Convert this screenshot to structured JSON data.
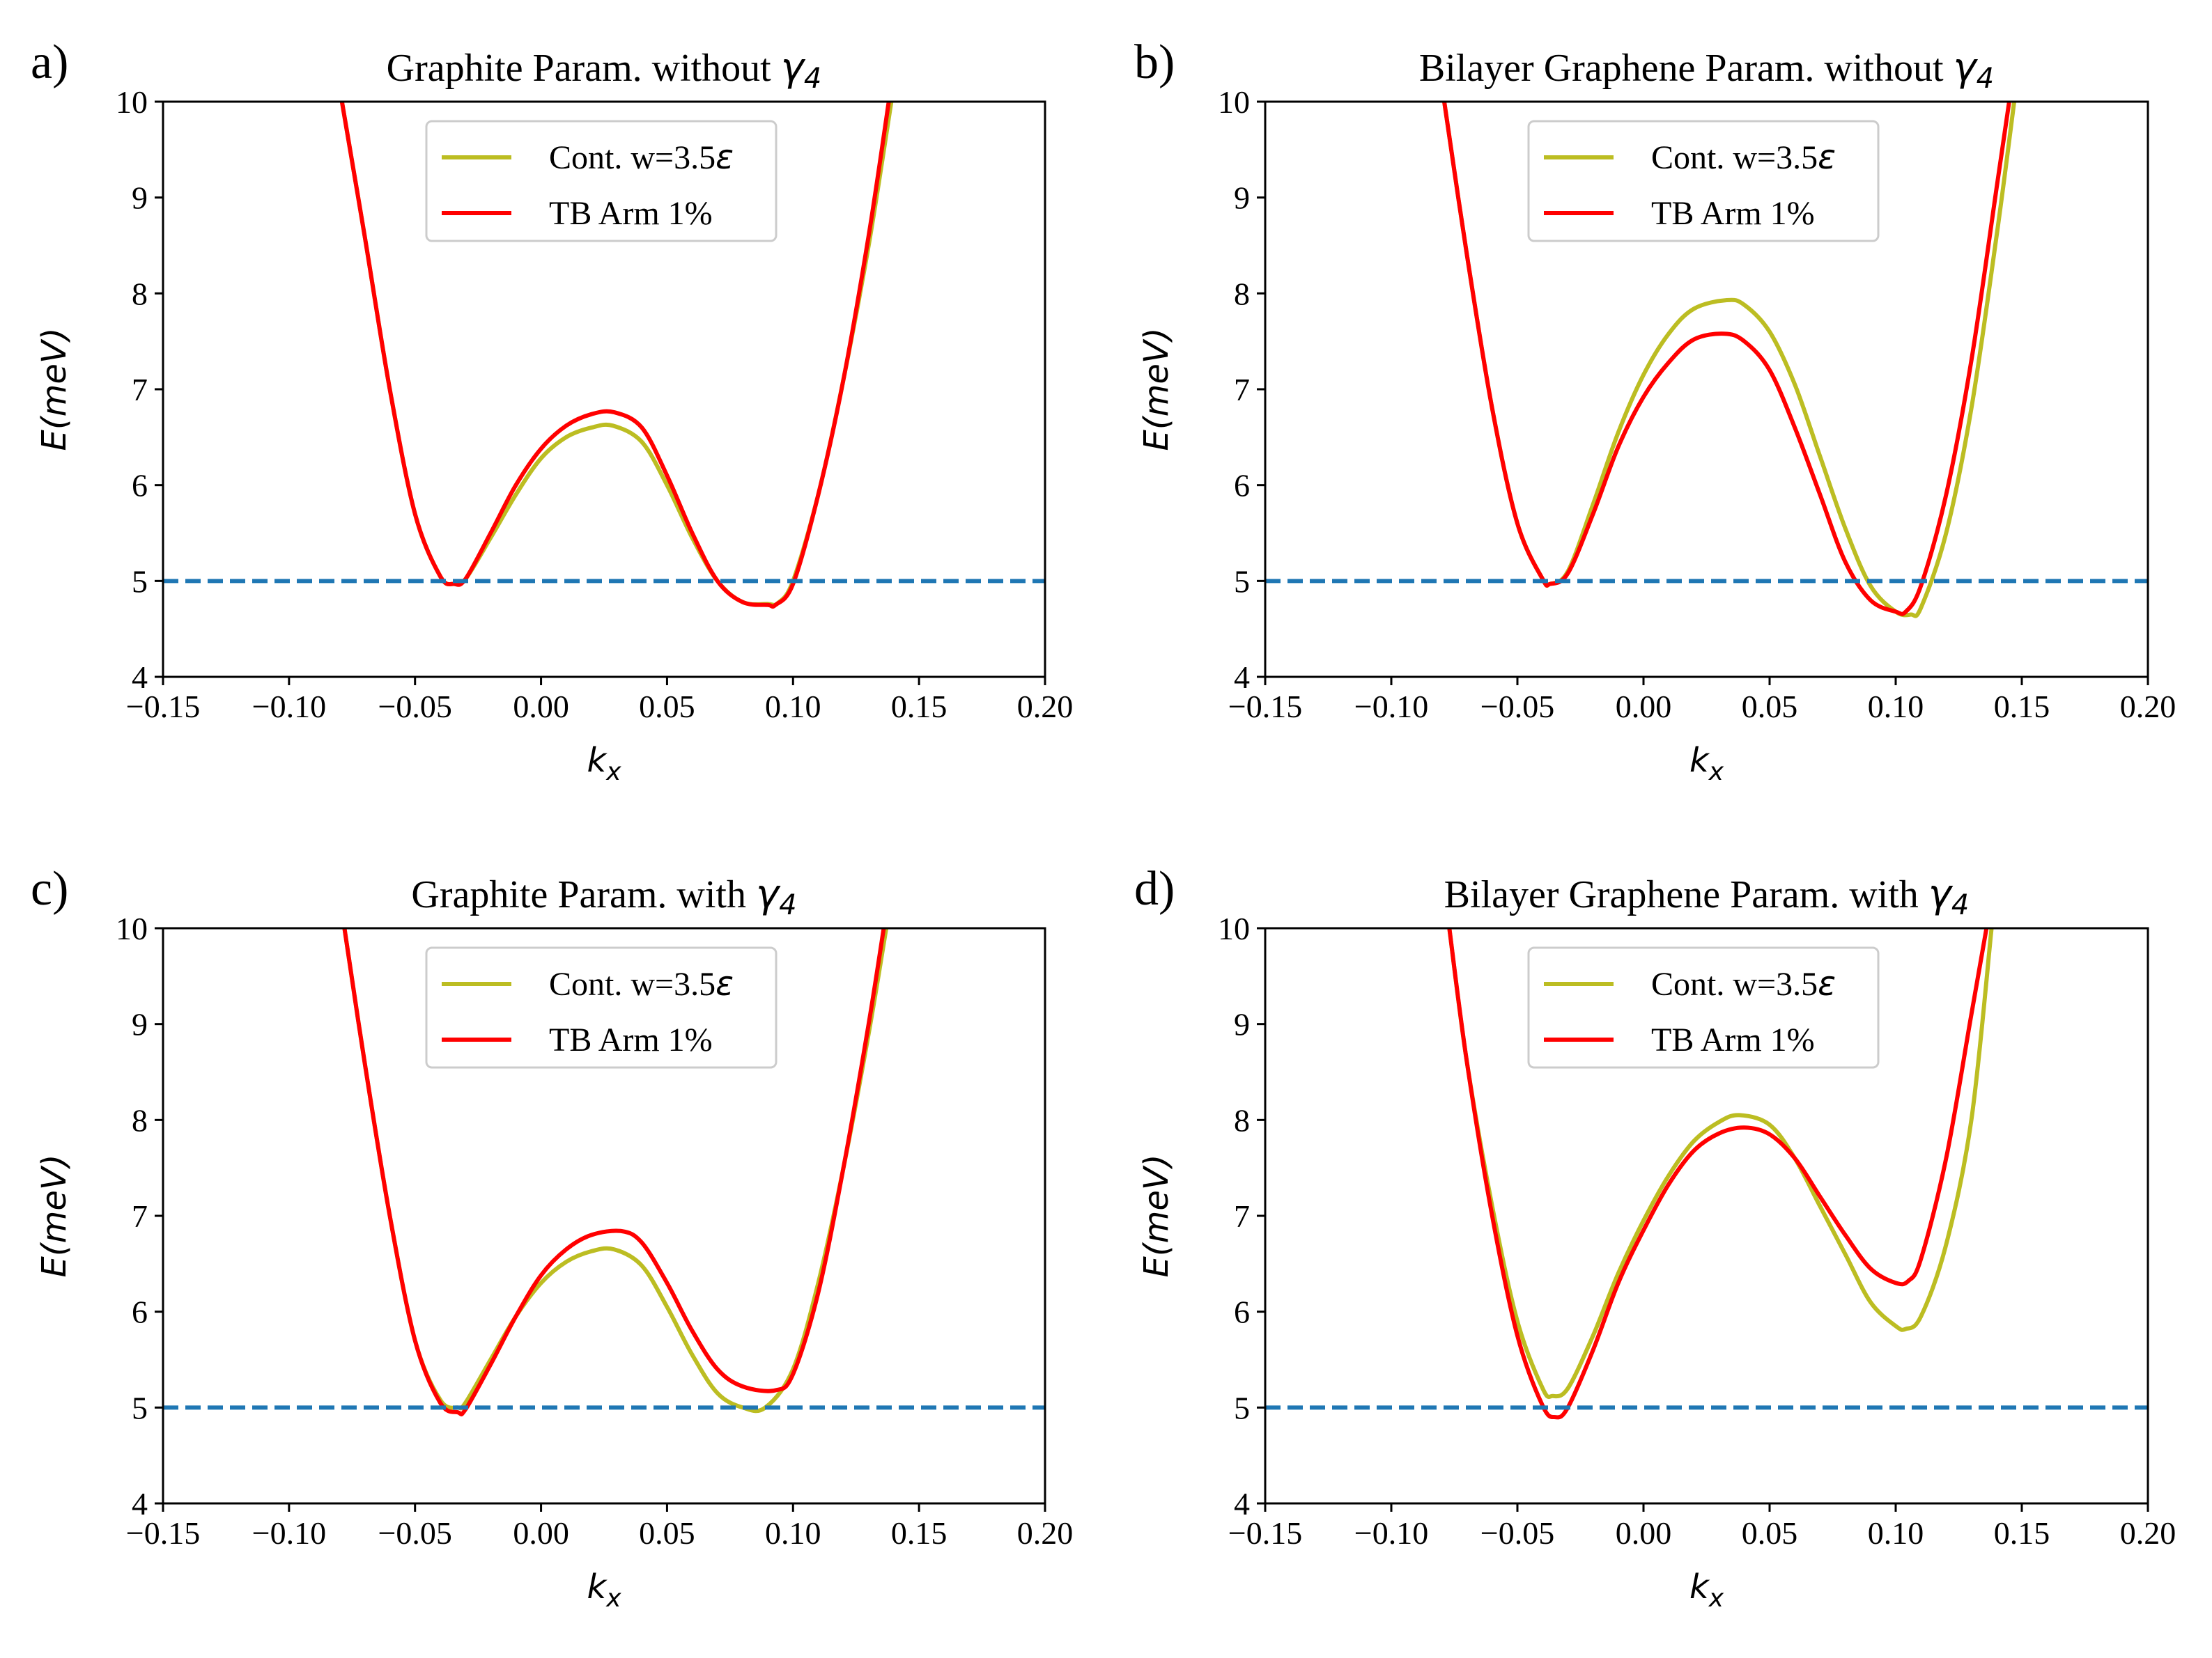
{
  "chart_data": [
    {
      "type": "line",
      "panel_label": "a)",
      "title": "Graphite Param. without ",
      "title_math": "γ4",
      "xlabel": "kx",
      "ylabel": "E(meV)",
      "xlim": [
        -0.15,
        0.2
      ],
      "ylim": [
        4,
        10
      ],
      "xticks": [
        -0.15,
        -0.1,
        -0.05,
        0.0,
        0.05,
        0.1,
        0.15,
        0.2
      ],
      "xtick_labels": [
        "−0.15",
        "−0.10",
        "−0.05",
        "0.00",
        "0.05",
        "0.10",
        "0.15",
        "0.20"
      ],
      "yticks": [
        4,
        5,
        6,
        7,
        8,
        9,
        10
      ],
      "ytick_labels": [
        "4",
        "5",
        "6",
        "7",
        "8",
        "9",
        "10"
      ],
      "legend_position": "top-center",
      "reference_line": {
        "y": 5.0,
        "color": "#1f77b4",
        "style": "dashed"
      },
      "series": [
        {
          "name": "Cont. w=3.5ε",
          "color": "#bcbd22",
          "x": [
            -0.079,
            -0.07,
            -0.06,
            -0.05,
            -0.04,
            -0.0345,
            -0.03,
            -0.02,
            -0.01,
            0.0,
            0.01,
            0.02,
            0.0285,
            0.04,
            0.05,
            0.06,
            0.07,
            0.08,
            0.09,
            0.094,
            0.1,
            0.11,
            0.12,
            0.13,
            0.139
          ],
          "y": [
            10.0,
            8.6,
            7.0,
            5.7,
            5.05,
            4.97,
            5.02,
            5.45,
            5.9,
            6.28,
            6.5,
            6.6,
            6.62,
            6.45,
            6.0,
            5.45,
            5.0,
            4.78,
            4.76,
            4.77,
            5.0,
            5.9,
            7.1,
            8.5,
            10.0
          ]
        },
        {
          "name": "TB Arm 1%",
          "color": "#ff0000",
          "x": [
            -0.079,
            -0.07,
            -0.06,
            -0.05,
            -0.04,
            -0.0345,
            -0.03,
            -0.02,
            -0.01,
            0.0,
            0.01,
            0.02,
            0.029,
            0.04,
            0.05,
            0.06,
            0.07,
            0.08,
            0.09,
            0.093,
            0.1,
            0.11,
            0.12,
            0.13,
            0.138
          ],
          "y": [
            10.0,
            8.6,
            7.0,
            5.7,
            5.05,
            4.97,
            5.02,
            5.5,
            6.0,
            6.38,
            6.62,
            6.74,
            6.76,
            6.6,
            6.1,
            5.5,
            5.0,
            4.78,
            4.75,
            4.75,
            4.97,
            5.9,
            7.1,
            8.6,
            10.0
          ]
        }
      ]
    },
    {
      "type": "line",
      "panel_label": "b)",
      "title": "Bilayer Graphene Param. without ",
      "title_math": "γ4",
      "xlabel": "kx",
      "ylabel": "E(meV)",
      "xlim": [
        -0.15,
        0.2
      ],
      "ylim": [
        4,
        10
      ],
      "xticks": [
        -0.15,
        -0.1,
        -0.05,
        0.0,
        0.05,
        0.1,
        0.15,
        0.2
      ],
      "xtick_labels": [
        "−0.15",
        "−0.10",
        "−0.05",
        "0.00",
        "0.05",
        "0.10",
        "0.15",
        "0.20"
      ],
      "yticks": [
        4,
        5,
        6,
        7,
        8,
        9,
        10
      ],
      "ytick_labels": [
        "4",
        "5",
        "6",
        "7",
        "8",
        "9",
        "10"
      ],
      "legend_position": "top-center",
      "reference_line": {
        "y": 5.0,
        "color": "#1f77b4",
        "style": "dashed"
      },
      "series": [
        {
          "name": "Cont. w=3.5ε",
          "color": "#bcbd22",
          "x": [
            -0.079,
            -0.07,
            -0.06,
            -0.05,
            -0.04,
            -0.037,
            -0.03,
            -0.02,
            -0.01,
            0.0,
            0.01,
            0.02,
            0.033,
            0.04,
            0.05,
            0.06,
            0.07,
            0.08,
            0.09,
            0.1,
            0.106,
            0.11,
            0.12,
            0.13,
            0.14,
            0.147
          ],
          "y": [
            10.0,
            8.4,
            6.8,
            5.6,
            5.02,
            4.97,
            5.1,
            5.8,
            6.55,
            7.15,
            7.58,
            7.84,
            7.93,
            7.88,
            7.6,
            7.05,
            6.3,
            5.55,
            4.95,
            4.68,
            4.65,
            4.72,
            5.5,
            6.8,
            8.6,
            10.0
          ]
        },
        {
          "name": "TB Arm 1%",
          "color": "#ff0000",
          "x": [
            -0.079,
            -0.07,
            -0.06,
            -0.05,
            -0.04,
            -0.037,
            -0.03,
            -0.02,
            -0.01,
            0.0,
            0.01,
            0.02,
            0.032,
            0.04,
            0.05,
            0.06,
            0.07,
            0.08,
            0.09,
            0.1,
            0.104,
            0.11,
            0.12,
            0.13,
            0.14,
            0.145
          ],
          "y": [
            10.0,
            8.4,
            6.8,
            5.6,
            5.02,
            4.97,
            5.08,
            5.7,
            6.4,
            6.92,
            7.28,
            7.52,
            7.58,
            7.5,
            7.2,
            6.6,
            5.9,
            5.2,
            4.8,
            4.68,
            4.68,
            4.95,
            5.9,
            7.3,
            9.1,
            10.0
          ]
        }
      ]
    },
    {
      "type": "line",
      "panel_label": "c)",
      "title": "Graphite Param. with ",
      "title_math": "γ4",
      "xlabel": "kx",
      "ylabel": "E(meV)",
      "xlim": [
        -0.15,
        0.2
      ],
      "ylim": [
        4,
        10
      ],
      "xticks": [
        -0.15,
        -0.1,
        -0.05,
        0.0,
        0.05,
        0.1,
        0.15,
        0.2
      ],
      "xtick_labels": [
        "−0.15",
        "−0.10",
        "−0.05",
        "0.00",
        "0.05",
        "0.10",
        "0.15",
        "0.20"
      ],
      "yticks": [
        4,
        5,
        6,
        7,
        8,
        9,
        10
      ],
      "ytick_labels": [
        "4",
        "5",
        "6",
        "7",
        "8",
        "9",
        "10"
      ],
      "legend_position": "top-center",
      "reference_line": {
        "y": 5.0,
        "color": "#1f77b4",
        "style": "dashed"
      },
      "series": [
        {
          "name": "Cont. w=3.5ε",
          "color": "#bcbd22",
          "x": [
            -0.078,
            -0.07,
            -0.06,
            -0.05,
            -0.04,
            -0.033,
            -0.03,
            -0.02,
            -0.01,
            0.0,
            0.01,
            0.02,
            0.029,
            0.04,
            0.05,
            0.06,
            0.07,
            0.08,
            0.089,
            0.1,
            0.11,
            0.12,
            0.13,
            0.137
          ],
          "y": [
            10.0,
            8.6,
            7.0,
            5.7,
            5.08,
            5.0,
            5.05,
            5.5,
            5.95,
            6.3,
            6.52,
            6.63,
            6.65,
            6.48,
            6.05,
            5.55,
            5.15,
            5.0,
            5.0,
            5.4,
            6.3,
            7.5,
            8.9,
            10.0
          ]
        },
        {
          "name": "TB Arm 1%",
          "color": "#ff0000",
          "x": [
            -0.078,
            -0.07,
            -0.06,
            -0.05,
            -0.04,
            -0.033,
            -0.03,
            -0.02,
            -0.01,
            0.0,
            0.01,
            0.02,
            0.032,
            0.04,
            0.05,
            0.06,
            0.07,
            0.08,
            0.093,
            0.1,
            0.11,
            0.12,
            0.13,
            0.136
          ],
          "y": [
            10.0,
            8.6,
            7.0,
            5.7,
            5.05,
            4.95,
            4.98,
            5.45,
            5.95,
            6.38,
            6.65,
            6.8,
            6.84,
            6.72,
            6.3,
            5.8,
            5.4,
            5.22,
            5.18,
            5.35,
            6.2,
            7.5,
            9.0,
            10.0
          ]
        }
      ]
    },
    {
      "type": "line",
      "panel_label": "d)",
      "title": "Bilayer Graphene Param. with ",
      "title_math": "γ4",
      "xlabel": "kx",
      "ylabel": "E(meV)",
      "xlim": [
        -0.15,
        0.2
      ],
      "ylim": [
        4,
        10
      ],
      "xticks": [
        -0.15,
        -0.1,
        -0.05,
        0.0,
        0.05,
        0.1,
        0.15,
        0.2
      ],
      "xtick_labels": [
        "−0.15",
        "−0.10",
        "−0.05",
        "0.00",
        "0.05",
        "0.10",
        "0.15",
        "0.20"
      ],
      "yticks": [
        4,
        5,
        6,
        7,
        8,
        9,
        10
      ],
      "ytick_labels": [
        "4",
        "5",
        "6",
        "7",
        "8",
        "9",
        "10"
      ],
      "legend_position": "top-center",
      "reference_line": {
        "y": 5.0,
        "color": "#1f77b4",
        "style": "dashed"
      },
      "series": [
        {
          "name": "Cont. w=3.5ε",
          "color": "#bcbd22",
          "x": [
            -0.077,
            -0.07,
            -0.06,
            -0.05,
            -0.04,
            -0.036,
            -0.03,
            -0.02,
            -0.01,
            0.0,
            0.01,
            0.02,
            0.03,
            0.038,
            0.05,
            0.06,
            0.07,
            0.08,
            0.09,
            0.1,
            0.104,
            0.11,
            0.12,
            0.13,
            0.138
          ],
          "y": [
            10.0,
            8.6,
            7.1,
            5.9,
            5.2,
            5.12,
            5.2,
            5.75,
            6.4,
            6.95,
            7.42,
            7.78,
            7.98,
            8.05,
            7.95,
            7.6,
            7.1,
            6.6,
            6.1,
            5.85,
            5.82,
            5.95,
            6.7,
            8.0,
            10.0
          ]
        },
        {
          "name": "TB Arm 1%",
          "color": "#ff0000",
          "x": [
            -0.077,
            -0.07,
            -0.06,
            -0.05,
            -0.04,
            -0.035,
            -0.03,
            -0.02,
            -0.01,
            0.0,
            0.01,
            0.02,
            0.03,
            0.04,
            0.05,
            0.06,
            0.07,
            0.08,
            0.09,
            0.1,
            0.105,
            0.11,
            0.12,
            0.13,
            0.136
          ],
          "y": [
            10.0,
            8.6,
            7.0,
            5.75,
            5.02,
            4.9,
            5.0,
            5.6,
            6.3,
            6.85,
            7.33,
            7.68,
            7.86,
            7.92,
            7.85,
            7.6,
            7.2,
            6.8,
            6.45,
            6.3,
            6.32,
            6.55,
            7.6,
            9.1,
            10.0
          ]
        }
      ]
    }
  ]
}
